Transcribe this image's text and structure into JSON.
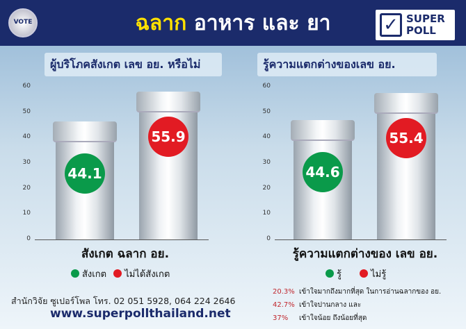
{
  "header": {
    "badge": "VOTE",
    "title_highlight": "ฉลาก",
    "title_rest": "อาหาร และ ยา",
    "logo_line1": "SUPER",
    "logo_line2": "POLL"
  },
  "chart_data": [
    {
      "type": "bar",
      "title": "ผู้บริโภคสังเกต เลข อย. หรือไม่",
      "categories": [
        "สังเกต ฉลาก อย."
      ],
      "series": [
        {
          "name": "สังเกต",
          "values": [
            44.1
          ],
          "color": "#0a9a4a"
        },
        {
          "name": "ไม่ได้สังเกต",
          "values": [
            55.9
          ],
          "color": "#e21b23"
        }
      ],
      "yticks": [
        "0",
        "10",
        "20",
        "30",
        "40",
        "50",
        "60"
      ],
      "ylim": [
        0,
        60
      ],
      "xlabel": "สังเกต ฉลาก อย.",
      "legend": [
        "สังเกต",
        "ไม่ได้สังเกต"
      ]
    },
    {
      "type": "bar",
      "title": "รู้ความแตกต่างของเลข อย.",
      "categories": [
        "รู้ความแตกต่างของ เลข อย."
      ],
      "series": [
        {
          "name": "รู้",
          "values": [
            44.6
          ],
          "color": "#0a9a4a"
        },
        {
          "name": "ไม่รู้",
          "values": [
            55.4
          ],
          "color": "#e21b23"
        }
      ],
      "yticks": [
        "0",
        "10",
        "20",
        "30",
        "40",
        "50",
        "60"
      ],
      "ylim": [
        0,
        60
      ],
      "xlabel": "รู้ความแตกต่างของ เลข อย.",
      "legend": [
        "รู้",
        "ไม่รู้"
      ]
    }
  ],
  "notes": [
    {
      "pct": "20.3%",
      "text": "เข้าใจมากถึงมากที่สุด ในการอ่านฉลากของ อย."
    },
    {
      "pct": "42.7%",
      "text": "เข้าใจปานกลาง และ"
    },
    {
      "pct": "37%",
      "text": "เข้าใจน้อย ถึงน้อยที่สุด"
    }
  ],
  "footer": {
    "contact": "สำนักวิจัย ซูเปอร์โพล โทร. 02 051 5928, 064 224 2646",
    "website": "www.superpollthailand.net"
  }
}
